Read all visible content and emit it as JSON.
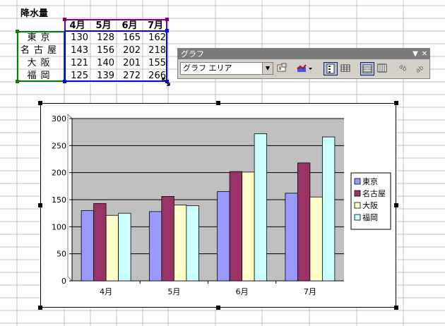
{
  "sheet": {
    "title": "降水量",
    "months": [
      "4月",
      "5月",
      "6月",
      "7月"
    ],
    "rows": [
      {
        "city": "東京",
        "values": [
          "130",
          "128",
          "165",
          "162"
        ]
      },
      {
        "city": "名古屋",
        "values": [
          "143",
          "156",
          "202",
          "218"
        ]
      },
      {
        "city": "大阪",
        "values": [
          "121",
          "140",
          "201",
          "155"
        ]
      },
      {
        "city": "福岡",
        "values": [
          "125",
          "139",
          "272",
          "266"
        ]
      }
    ]
  },
  "toolbar": {
    "title": "グラフ",
    "selected_object": "グラフ エリア",
    "buttons": [
      "format-selected-icon",
      "chart-type-icon",
      "legend-icon",
      "data-table-icon",
      "by-row-icon",
      "by-column-icon",
      "angle-text-down-icon",
      "angle-text-up-icon"
    ]
  },
  "chart_data": {
    "type": "bar",
    "categories": [
      "4月",
      "5月",
      "6月",
      "7月"
    ],
    "series": [
      {
        "name": "東京",
        "values": [
          130,
          128,
          165,
          162
        ],
        "color": "#9999ff"
      },
      {
        "name": "名古屋",
        "values": [
          143,
          156,
          202,
          218
        ],
        "color": "#993366"
      },
      {
        "name": "大阪",
        "values": [
          121,
          140,
          201,
          155
        ],
        "color": "#ffffcc"
      },
      {
        "name": "福岡",
        "values": [
          125,
          139,
          272,
          266
        ],
        "color": "#ccffff"
      }
    ],
    "ylim": [
      0,
      300
    ],
    "yticks": [
      0,
      50,
      100,
      150,
      200,
      250,
      300
    ],
    "grid": true,
    "plot_background": "#c0c0c0",
    "legend_position": "right"
  },
  "colors": {
    "gridline": "#c0c0c0",
    "selection_green": "#008000",
    "selection_purple": "#800080",
    "selection_blue": "#0000ff"
  }
}
